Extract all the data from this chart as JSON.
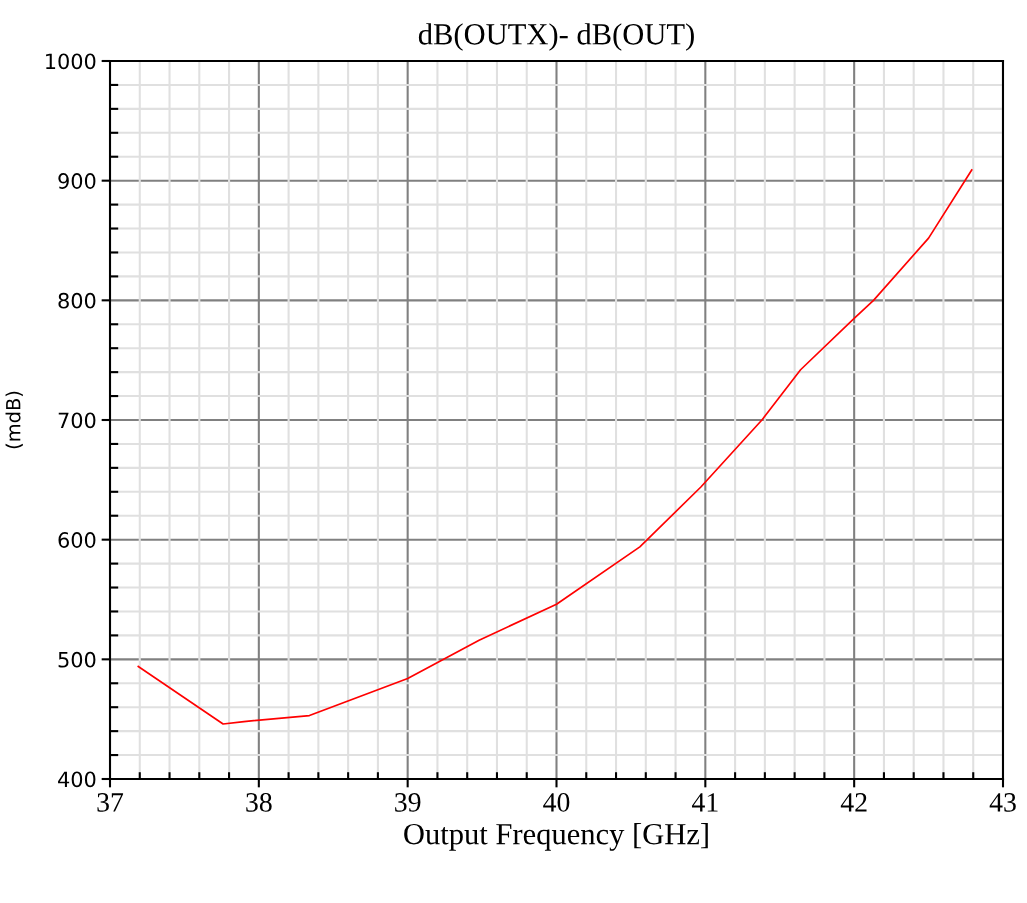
{
  "chart_data": {
    "type": "line",
    "title": "dB(OUTX)- dB(OUT)",
    "xlabel": "Output Frequency [GHz]",
    "ylabel": "(mdB)",
    "series": [
      {
        "color": "#ff0000",
        "x": [
          37.19,
          37.76,
          37.9,
          38.34,
          39.0,
          39.48,
          40.0,
          40.56,
          40.97,
          41.38,
          41.64,
          42.0,
          42.13,
          42.5,
          42.79
        ],
        "values": [
          494,
          446,
          448,
          453,
          484,
          516,
          546,
          594,
          644,
          700,
          742,
          785,
          800,
          852,
          909
        ]
      }
    ],
    "xlim": [
      37,
      43
    ],
    "xticks": [
      37,
      38,
      39,
      40,
      41,
      42,
      43
    ],
    "ylim": [
      400,
      1000
    ],
    "yticks": [
      400,
      500,
      600,
      700,
      800,
      900,
      1000
    ],
    "grid": true,
    "marker": "none",
    "line_style": "solid"
  }
}
